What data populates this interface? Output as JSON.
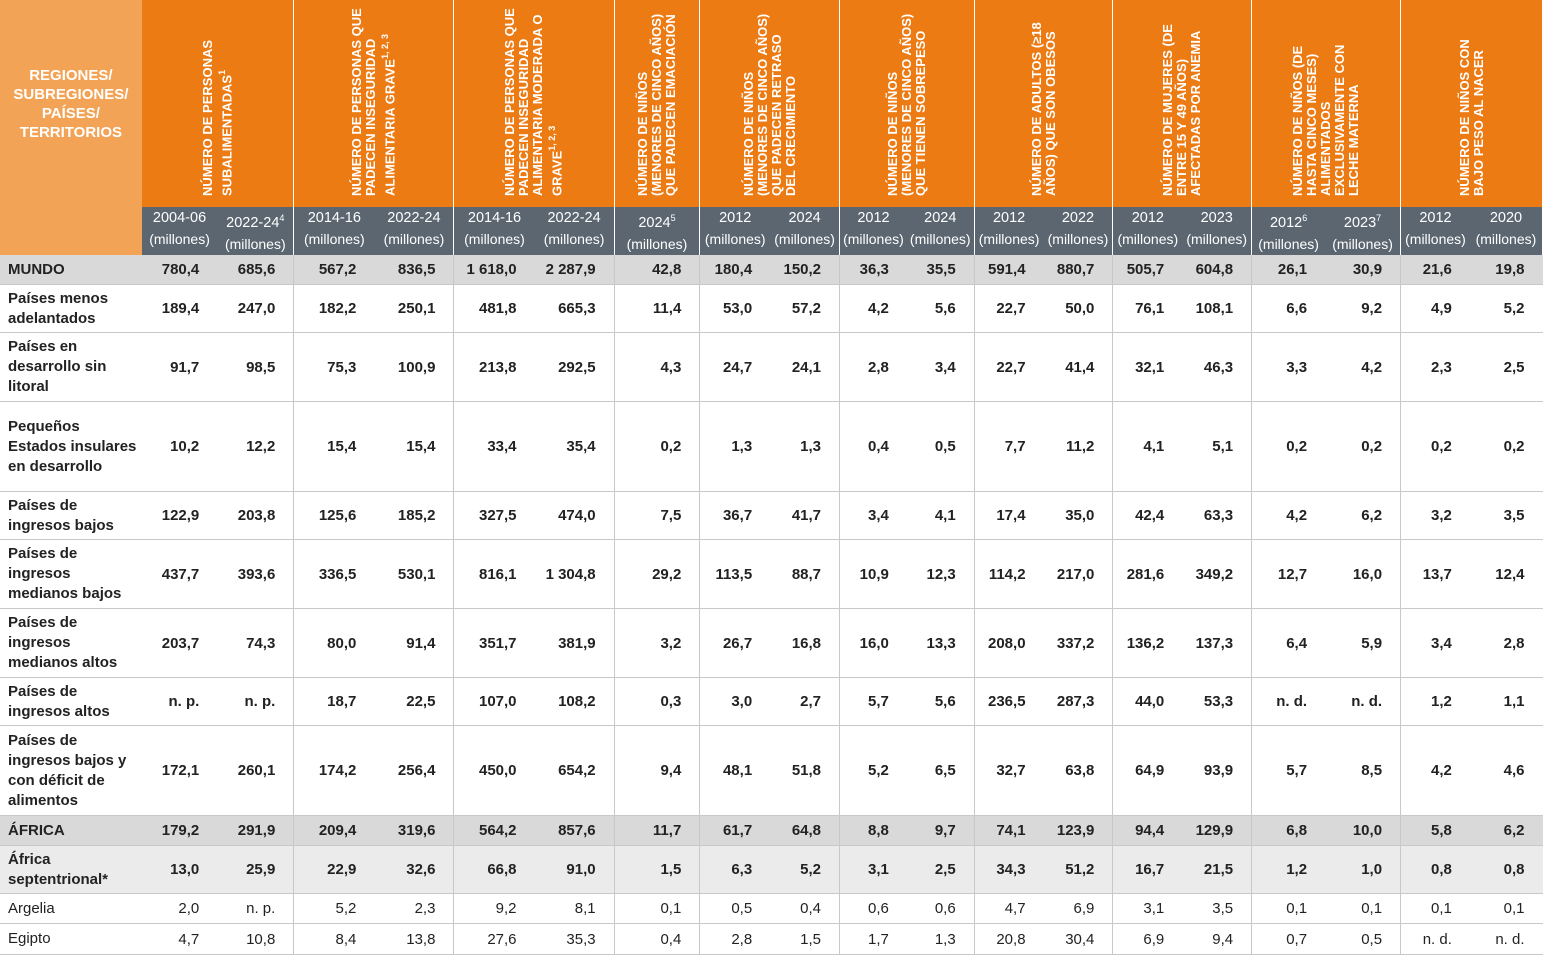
{
  "header": {
    "corner_label": "REGIONES/ SUBREGIONES/ PAÍSES/ TERRITORIOS",
    "groups": [
      {
        "title": "NÚMERO DE PERSONAS SUBALIMENTADAS",
        "sup": "1",
        "cols": [
          {
            "year": "2004-06",
            "sup": "",
            "unit": "(millones)"
          },
          {
            "year": "2022-24",
            "sup": "4",
            "unit": "(millones)"
          }
        ]
      },
      {
        "title": "NÚMERO DE PERSONAS QUE PADECEN INSEGURIDAD ALIMENTARIA GRAVE",
        "sup": "1, 2, 3",
        "cols": [
          {
            "year": "2014-16",
            "sup": "",
            "unit": "(millones)"
          },
          {
            "year": "2022-24",
            "sup": "",
            "unit": "(millones)"
          }
        ]
      },
      {
        "title": "NÚMERO DE PERSONAS QUE PADECEN INSEGURIDAD ALIMENTARIA MODERADA O GRAVE",
        "sup": "1, 2, 3",
        "cols": [
          {
            "year": "2014-16",
            "sup": "",
            "unit": "(millones)"
          },
          {
            "year": "2022-24",
            "sup": "",
            "unit": "(millones)"
          }
        ]
      },
      {
        "title": "NÚMERO DE NIÑOS (MENORES DE CINCO AÑOS) QUE PADECEN EMACIACIÓN",
        "sup": "",
        "cols": [
          {
            "year": "2024",
            "sup": "5",
            "unit": "(millones)"
          }
        ]
      },
      {
        "title": "NÚMERO DE NIÑOS (MENORES DE CINCO AÑOS) QUE PADECEN RETRASO DEL CRECIMIENTO",
        "sup": "",
        "cols": [
          {
            "year": "2012",
            "sup": "",
            "unit": "(millones)"
          },
          {
            "year": "2024",
            "sup": "",
            "unit": "(millones)"
          }
        ]
      },
      {
        "title": "NÚMERO DE NIÑOS (MENORES DE CINCO AÑOS) QUE TIENEN SOBREPESO",
        "sup": "",
        "cols": [
          {
            "year": "2012",
            "sup": "",
            "unit": "(millones)"
          },
          {
            "year": "2024",
            "sup": "",
            "unit": "(millones)"
          }
        ]
      },
      {
        "title": "NÚMERO DE ADULTOS (≥18 AÑOS) QUE SON OBESOS",
        "sup": "",
        "cols": [
          {
            "year": "2012",
            "sup": "",
            "unit": "(millones)"
          },
          {
            "year": "2022",
            "sup": "",
            "unit": "(millones)"
          }
        ]
      },
      {
        "title": "NÚMERO DE MUJERES (DE ENTRE 15 Y 49 AÑOS) AFECTADAS POR ANEMIA",
        "sup": "",
        "cols": [
          {
            "year": "2012",
            "sup": "",
            "unit": "(millones)"
          },
          {
            "year": "2023",
            "sup": "",
            "unit": "(millones)"
          }
        ]
      },
      {
        "title": "NÚMERO DE NIÑOS (DE HASTA CINCO MESES) ALIMENTADOS EXCLUSIVAMENTE CON LECHE MATERNA",
        "sup": "",
        "cols": [
          {
            "year": "2012",
            "sup": "6",
            "unit": "(millones)"
          },
          {
            "year": "2023",
            "sup": "7",
            "unit": "(millones)"
          }
        ]
      },
      {
        "title": "NÚMERO DE NIÑOS CON BAJO PESO AL NACER",
        "sup": "",
        "cols": [
          {
            "year": "2012",
            "sup": "",
            "unit": "(millones)"
          },
          {
            "year": "2020",
            "sup": "",
            "unit": "(millones)"
          }
        ]
      }
    ]
  },
  "rows": [
    {
      "type": "world",
      "label": "MUNDO",
      "values": [
        "780,4",
        "685,6",
        "567,2",
        "836,5",
        "1 618,0",
        "2 287,9",
        "42,8",
        "180,4",
        "150,2",
        "36,3",
        "35,5",
        "591,4",
        "880,7",
        "505,7",
        "604,8",
        "26,1",
        "30,9",
        "21,6",
        "19,8"
      ]
    },
    {
      "type": "group",
      "label": "Países menos adelantados",
      "values": [
        "189,4",
        "247,0",
        "182,2",
        "250,1",
        "481,8",
        "665,3",
        "11,4",
        "53,0",
        "57,2",
        "4,2",
        "5,6",
        "22,7",
        "50,0",
        "76,1",
        "108,1",
        "6,6",
        "9,2",
        "4,9",
        "5,2"
      ]
    },
    {
      "type": "group",
      "label": "Países en desarrollo sin litoral",
      "values": [
        "91,7",
        "98,5",
        "75,3",
        "100,9",
        "213,8",
        "292,5",
        "4,3",
        "24,7",
        "24,1",
        "2,8",
        "3,4",
        "22,7",
        "41,4",
        "32,1",
        "46,3",
        "3,3",
        "4,2",
        "2,3",
        "2,5"
      ]
    },
    {
      "type": "group",
      "label": "Pequeños Estados insulares en desarrollo",
      "values": [
        "10,2",
        "12,2",
        "15,4",
        "15,4",
        "33,4",
        "35,4",
        "0,2",
        "1,3",
        "1,3",
        "0,4",
        "0,5",
        "7,7",
        "11,2",
        "4,1",
        "5,1",
        "0,2",
        "0,2",
        "0,2",
        "0,2"
      ]
    },
    {
      "type": "group",
      "label": "Países de ingresos bajos",
      "values": [
        "122,9",
        "203,8",
        "125,6",
        "185,2",
        "327,5",
        "474,0",
        "7,5",
        "36,7",
        "41,7",
        "3,4",
        "4,1",
        "17,4",
        "35,0",
        "42,4",
        "63,3",
        "4,2",
        "6,2",
        "3,2",
        "3,5"
      ]
    },
    {
      "type": "group",
      "label": "Países de ingresos medianos bajos",
      "values": [
        "437,7",
        "393,6",
        "336,5",
        "530,1",
        "816,1",
        "1 304,8",
        "29,2",
        "113,5",
        "88,7",
        "10,9",
        "12,3",
        "114,2",
        "217,0",
        "281,6",
        "349,2",
        "12,7",
        "16,0",
        "13,7",
        "12,4"
      ]
    },
    {
      "type": "group",
      "label": "Países de ingresos medianos altos",
      "values": [
        "203,7",
        "74,3",
        "80,0",
        "91,4",
        "351,7",
        "381,9",
        "3,2",
        "26,7",
        "16,8",
        "16,0",
        "13,3",
        "208,0",
        "337,2",
        "136,2",
        "137,3",
        "6,4",
        "5,9",
        "3,4",
        "2,8"
      ]
    },
    {
      "type": "group",
      "label": "Países de ingresos altos",
      "values": [
        "n. p.",
        "n. p.",
        "18,7",
        "22,5",
        "107,0",
        "108,2",
        "0,3",
        "3,0",
        "2,7",
        "5,7",
        "5,6",
        "236,5",
        "287,3",
        "44,0",
        "53,3",
        "n. d.",
        "n. d.",
        "1,2",
        "1,1"
      ]
    },
    {
      "type": "group",
      "label": "Países de ingresos bajos y con déficit de alimentos",
      "values": [
        "172,1",
        "260,1",
        "174,2",
        "256,4",
        "450,0",
        "654,2",
        "9,4",
        "48,1",
        "51,8",
        "5,2",
        "6,5",
        "32,7",
        "63,8",
        "64,9",
        "93,9",
        "5,7",
        "8,5",
        "4,2",
        "4,6"
      ]
    },
    {
      "type": "region",
      "label": "ÁFRICA",
      "values": [
        "179,2",
        "291,9",
        "209,4",
        "319,6",
        "564,2",
        "857,6",
        "11,7",
        "61,7",
        "64,8",
        "8,8",
        "9,7",
        "74,1",
        "123,9",
        "94,4",
        "129,9",
        "6,8",
        "10,0",
        "5,8",
        "6,2"
      ]
    },
    {
      "type": "sub",
      "label": "África septentrional*",
      "values": [
        "13,0",
        "25,9",
        "22,9",
        "32,6",
        "66,8",
        "91,0",
        "1,5",
        "6,3",
        "5,2",
        "3,1",
        "2,5",
        "34,3",
        "51,2",
        "16,7",
        "21,5",
        "1,2",
        "1,0",
        "0,8",
        "0,8"
      ]
    },
    {
      "type": "country",
      "label": "Argelia",
      "values": [
        "2,0",
        "n. p.",
        "5,2",
        "2,3",
        "9,2",
        "8,1",
        "0,1",
        "0,5",
        "0,4",
        "0,6",
        "0,6",
        "4,7",
        "6,9",
        "3,1",
        "3,5",
        "0,1",
        "0,1",
        "0,1",
        "0,1"
      ]
    },
    {
      "type": "country",
      "label": "Egipto",
      "values": [
        "4,7",
        "10,8",
        "8,4",
        "13,8",
        "27,6",
        "35,3",
        "0,4",
        "2,8",
        "1,5",
        "1,7",
        "1,3",
        "20,8",
        "30,4",
        "6,9",
        "9,4",
        "0,7",
        "0,5",
        "n. d.",
        "n. d."
      ]
    }
  ]
}
